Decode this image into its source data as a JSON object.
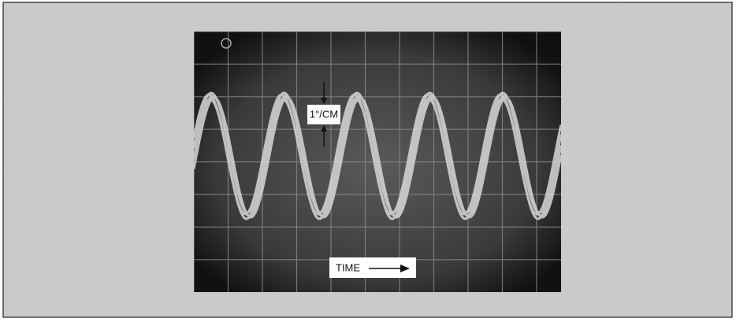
{
  "labels": {
    "amplitude": "1°/CM",
    "time": "TIME"
  }
}
